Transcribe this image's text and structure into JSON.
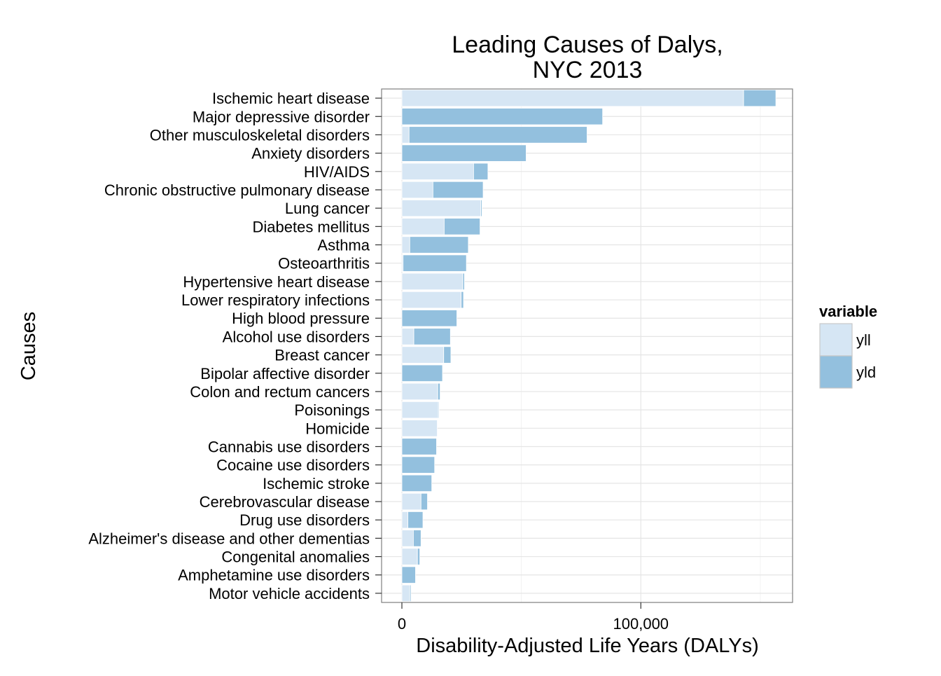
{
  "chart_data": {
    "type": "bar",
    "orientation": "horizontal",
    "stacked": true,
    "title": [
      "Leading Causes of Dalys,",
      "NYC 2013"
    ],
    "xlabel": "Disability-Adjusted Life Years (DALYs)",
    "ylabel": "Causes",
    "xlim": [
      -8500,
      163500
    ],
    "x_ticks": [
      0,
      100000
    ],
    "x_tick_labels": [
      "0",
      "100,000"
    ],
    "grid": true,
    "legend": {
      "title": "variable",
      "position": "right",
      "entries": [
        {
          "name": "yll",
          "color": "#d6e6f4"
        },
        {
          "name": "yld",
          "color": "#93c0de"
        }
      ]
    },
    "categories": [
      "Ischemic heart disease",
      "Major depressive disorder",
      "Other musculoskeletal disorders",
      "Anxiety disorders",
      "HIV/AIDS",
      "Chronic obstructive pulmonary disease",
      "Lung cancer",
      "Diabetes mellitus",
      "Asthma",
      "Osteoarthritis",
      "Hypertensive heart disease",
      "Lower respiratory infections",
      "High blood pressure",
      "Alcohol use disorders",
      "Breast cancer",
      "Bipolar affective disorder",
      "Colon and rectum cancers",
      "Poisonings",
      "Homicide",
      "Cannabis use disorders",
      "Cocaine use disorders",
      "Ischemic stroke",
      "Cerebrovascular disease",
      "Drug use disorders",
      "Alzheimer's disease and other dementias",
      "Congenital anomalies",
      "Amphetamine use disorders",
      "Motor vehicle accidents"
    ],
    "series": [
      {
        "name": "yll",
        "color": "#d6e6f4",
        "values": [
          143000,
          0,
          3000,
          0,
          30000,
          13000,
          33000,
          17700,
          3300,
          500,
          25500,
          24800,
          0,
          5000,
          17500,
          0,
          15000,
          15300,
          14800,
          0,
          0,
          0,
          8000,
          2500,
          4800,
          6500,
          0,
          3300
        ]
      },
      {
        "name": "yld",
        "color": "#93c0de",
        "values": [
          13500,
          84000,
          74500,
          52000,
          6000,
          21000,
          500,
          15000,
          24500,
          26500,
          700,
          1000,
          23000,
          15300,
          3000,
          17000,
          1000,
          300,
          0,
          14500,
          13700,
          12500,
          2700,
          6300,
          3200,
          1000,
          5700,
          500
        ]
      }
    ]
  }
}
